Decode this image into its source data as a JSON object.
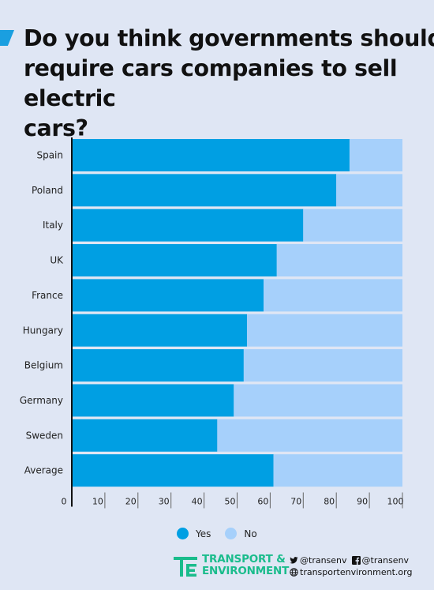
{
  "title": "Do you think governments should\nrequire cars companies to sell electric\ncars?",
  "colors": {
    "yes": "#009fe3",
    "no": "#a6d0fb",
    "background": "#dfe6f4",
    "brand": "#1abc8c"
  },
  "legend": [
    {
      "label": "Yes",
      "color": "#009fe3"
    },
    {
      "label": "No",
      "color": "#a6d0fb"
    }
  ],
  "chart_data": {
    "type": "bar",
    "orientation": "horizontal",
    "stacked": true,
    "categories": [
      "Spain",
      "Poland",
      "Italy",
      "UK",
      "France",
      "Hungary",
      "Belgium",
      "Germany",
      "Sweden",
      "Average"
    ],
    "series": [
      {
        "name": "Yes",
        "values": [
          84,
          80,
          70,
          62,
          58,
          53,
          52,
          49,
          44,
          61
        ]
      },
      {
        "name": "No",
        "values": [
          16,
          20,
          30,
          38,
          42,
          47,
          48,
          51,
          56,
          39
        ]
      }
    ],
    "xlim": [
      0,
      100
    ],
    "xticks": [
      0,
      10,
      20,
      30,
      40,
      50,
      60,
      70,
      80,
      90,
      100
    ],
    "grid": false,
    "legend_position": "bottom"
  },
  "footer": {
    "brand_line1": "TRANSPORT &",
    "brand_line2": "ENVIRONMENT",
    "twitter": "@transenv",
    "facebook": "@transenv",
    "website": "transportenvironment.org"
  }
}
